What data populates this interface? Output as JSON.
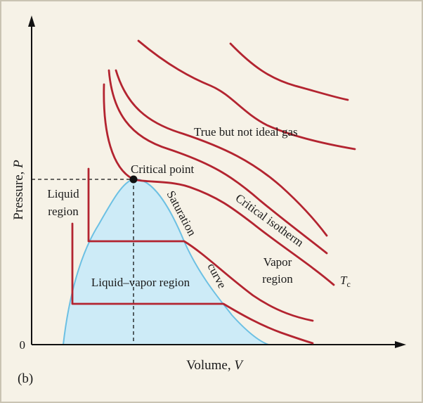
{
  "axes": {
    "y_label": {
      "text": "Pressure,",
      "symbol": "P"
    },
    "x_label": {
      "text": "Volume,",
      "symbol": "V"
    },
    "origin": "0"
  },
  "panel": "(b)",
  "labels": {
    "liquid_region": [
      "Liquid",
      "region"
    ],
    "critical_point": "Critical point",
    "gas": "True but not ideal gas",
    "saturation": "Saturation",
    "curve": "curve",
    "critical_isotherm": "Critical isotherm",
    "vapor_region": [
      "Vapor",
      "region"
    ],
    "liquid_vapor_region": "Liquid–vapor region",
    "tc": {
      "symbol": "T",
      "subscript": "c"
    }
  }
}
